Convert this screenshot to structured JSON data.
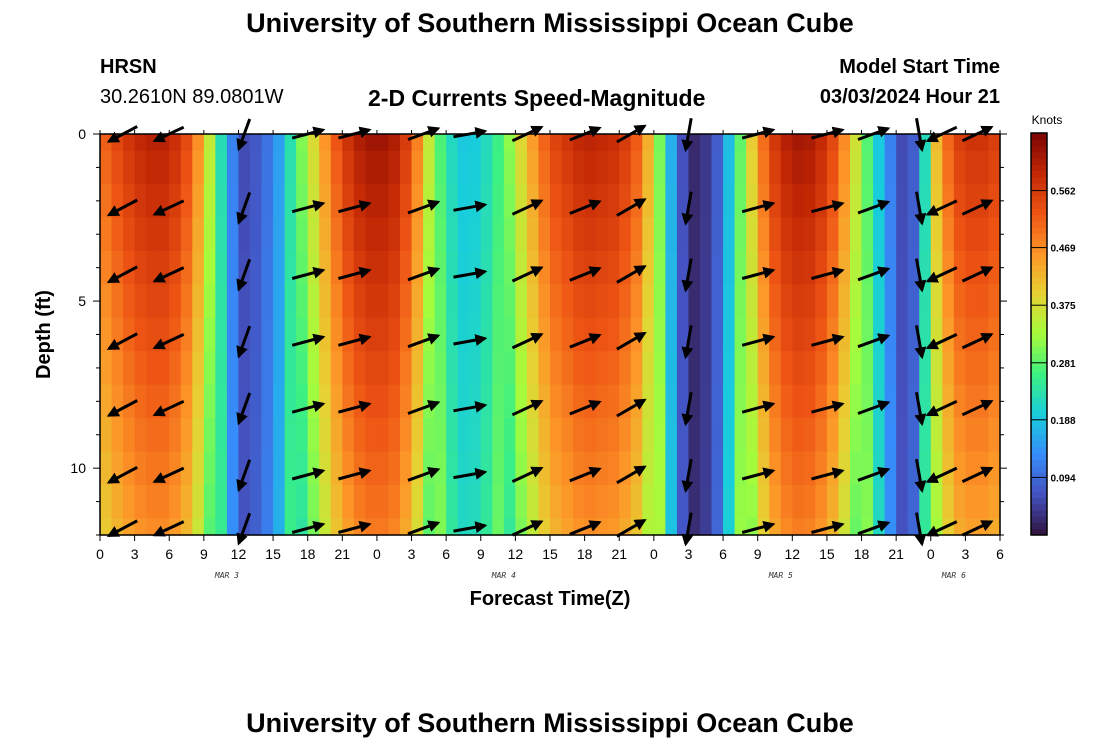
{
  "header": {
    "title": "University of Southern Mississippi Ocean Cube",
    "station": "HRSN",
    "coords": "30.2610N  89.0801W",
    "chart_title": "2-D Currents Speed-Magnitude",
    "model_label": "Model Start Time",
    "model_time": "03/03/2024 Hour 21"
  },
  "footer": {
    "title": "University of Southern Mississippi Ocean Cube"
  },
  "chart_data": {
    "type": "heatmap",
    "title": "2-D Currents Speed-Magnitude",
    "xlabel": "Forecast Time(Z)",
    "ylabel": "Depth (ft)",
    "xlim": [
      0,
      78
    ],
    "ylim": [
      12,
      0
    ],
    "x_tick_labels": [
      "0",
      "3",
      "6",
      "9",
      "12",
      "15",
      "18",
      "21",
      "0",
      "3",
      "6",
      "9",
      "12",
      "15",
      "18",
      "21",
      "0",
      "3",
      "6",
      "9",
      "12",
      "15",
      "18",
      "21",
      "0",
      "3",
      "6"
    ],
    "y_ticks": [
      0,
      5,
      10
    ],
    "y_tick_labels": [
      "0",
      "5",
      "10"
    ],
    "day_labels": [
      {
        "label": "MAR 3",
        "hour": 11
      },
      {
        "label": "MAR 4",
        "hour": 35
      },
      {
        "label": "MAR 5",
        "hour": 59
      },
      {
        "label": "MAR 6",
        "hour": 74
      }
    ],
    "colorbar": {
      "title": "Knots",
      "range": [
        0,
        0.656
      ],
      "tick_values": [
        0.094,
        0.188,
        0.281,
        0.375,
        0.469,
        0.562
      ],
      "tick_labels": [
        "0.094",
        "0.188",
        "0.281",
        "0.375",
        "0.469",
        "0.562"
      ]
    },
    "depth_rows_ft": [
      0,
      1,
      2,
      3,
      4,
      5,
      6,
      7,
      8,
      9,
      10,
      11,
      12
    ],
    "speed_profile": [
      {
        "hour": 0,
        "knots": 0.5
      },
      {
        "hour": 2,
        "knots": 0.56
      },
      {
        "hour": 4,
        "knots": 0.6
      },
      {
        "hour": 6,
        "knots": 0.6
      },
      {
        "hour": 8,
        "knots": 0.52
      },
      {
        "hour": 10,
        "knots": 0.3
      },
      {
        "hour": 11,
        "knots": 0.15
      },
      {
        "hour": 12.5,
        "knots": 0.06
      },
      {
        "hour": 14,
        "knots": 0.08
      },
      {
        "hour": 15.5,
        "knots": 0.15
      },
      {
        "hour": 17,
        "knots": 0.27
      },
      {
        "hour": 18.5,
        "knots": 0.38
      },
      {
        "hour": 20,
        "knots": 0.5
      },
      {
        "hour": 22,
        "knots": 0.6
      },
      {
        "hour": 24,
        "knots": 0.63
      },
      {
        "hour": 26,
        "knots": 0.6
      },
      {
        "hour": 27.5,
        "knots": 0.48
      },
      {
        "hour": 29,
        "knots": 0.3
      },
      {
        "hour": 31,
        "knots": 0.19
      },
      {
        "hour": 33,
        "knots": 0.2
      },
      {
        "hour": 35,
        "knots": 0.28
      },
      {
        "hour": 37,
        "knots": 0.42
      },
      {
        "hour": 39,
        "knots": 0.54
      },
      {
        "hour": 42,
        "knots": 0.6
      },
      {
        "hour": 45,
        "knots": 0.58
      },
      {
        "hour": 47,
        "knots": 0.5
      },
      {
        "hour": 48.5,
        "knots": 0.3
      },
      {
        "hour": 50,
        "knots": 0.1
      },
      {
        "hour": 51,
        "knots": 0.03
      },
      {
        "hour": 52,
        "knots": 0.02
      },
      {
        "hour": 53.5,
        "knots": 0.08
      },
      {
        "hour": 55,
        "knots": 0.23
      },
      {
        "hour": 56.5,
        "knots": 0.4
      },
      {
        "hour": 58,
        "knots": 0.55
      },
      {
        "hour": 60,
        "knots": 0.62
      },
      {
        "hour": 62,
        "knots": 0.61
      },
      {
        "hour": 64,
        "knots": 0.52
      },
      {
        "hour": 65.5,
        "knots": 0.37
      },
      {
        "hour": 67,
        "knots": 0.23
      },
      {
        "hour": 68.5,
        "knots": 0.12
      },
      {
        "hour": 69.5,
        "knots": 0.06
      },
      {
        "hour": 70.5,
        "knots": 0.08
      },
      {
        "hour": 71.5,
        "knots": 0.22
      },
      {
        "hour": 72.5,
        "knots": 0.42
      },
      {
        "hour": 74,
        "knots": 0.55
      },
      {
        "hour": 76,
        "knots": 0.58
      },
      {
        "hour": 78,
        "knots": 0.55
      }
    ],
    "vector_hours": [
      2,
      6,
      12.5,
      18,
      22,
      28,
      32,
      37,
      42,
      46,
      51,
      57,
      63,
      67,
      71,
      73,
      76
    ],
    "vector_depths_ft": [
      0,
      2.2,
      4.2,
      6.2,
      8.2,
      10.2,
      11.8
    ],
    "vector_directions_deg": [
      242,
      245,
      200,
      75,
      75,
      70,
      80,
      65,
      68,
      60,
      190,
      75,
      75,
      70,
      170,
      245,
      65
    ]
  }
}
